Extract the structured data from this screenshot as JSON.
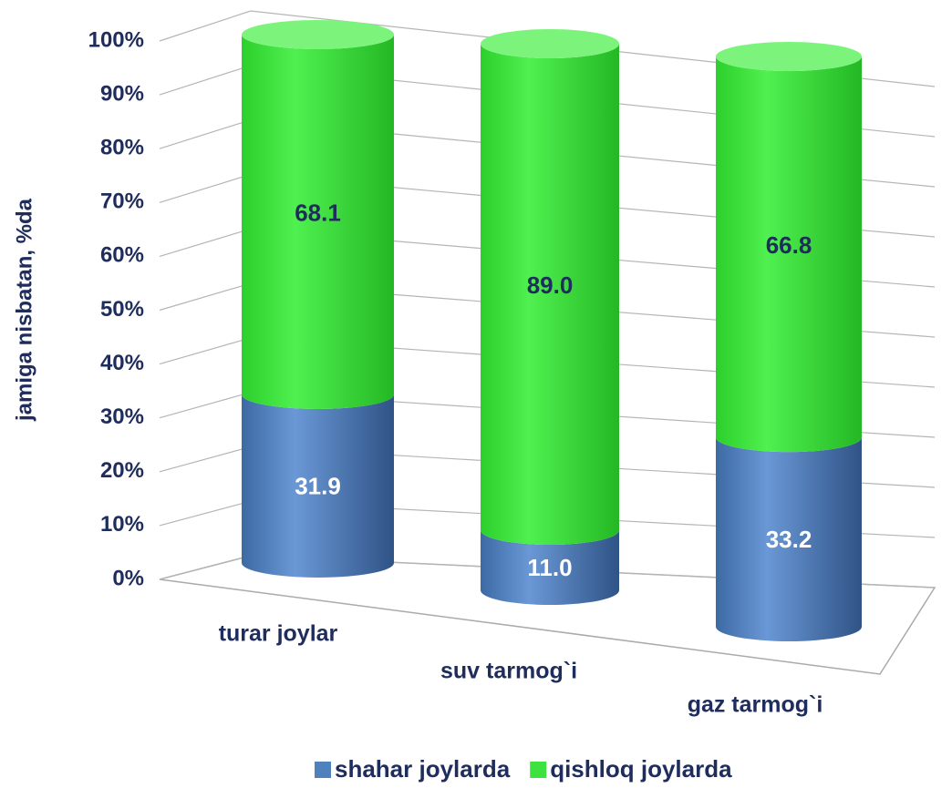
{
  "chart_data": {
    "type": "bar",
    "stacked": true,
    "ylabel": "jamiga nisbatan, %da",
    "categories": [
      "turar joylar",
      "suv tarmog`i",
      "gaz tarmog`i"
    ],
    "series": [
      {
        "name": "shahar joylarda",
        "color": "#4f81bd",
        "values": [
          31.9,
          11.0,
          33.2
        ],
        "value_labels": [
          "31.9",
          "11.0",
          "33.2"
        ]
      },
      {
        "name": "qishloq joylarda",
        "color": "#3ee23e",
        "values": [
          68.1,
          89.0,
          66.8
        ],
        "value_labels": [
          "68.1",
          "89.0",
          "66.8"
        ]
      }
    ],
    "ylim": [
      0,
      100
    ],
    "yticks": [
      {
        "value": 0,
        "label": "0%"
      },
      {
        "value": 10,
        "label": "10%"
      },
      {
        "value": 20,
        "label": "20%"
      },
      {
        "value": 30,
        "label": "30%"
      },
      {
        "value": 40,
        "label": "40%"
      },
      {
        "value": 50,
        "label": "50%"
      },
      {
        "value": 60,
        "label": "60%"
      },
      {
        "value": 70,
        "label": "70%"
      },
      {
        "value": 80,
        "label": "80%"
      },
      {
        "value": 90,
        "label": "90%"
      },
      {
        "value": 100,
        "label": "100%"
      }
    ],
    "grid": true
  }
}
